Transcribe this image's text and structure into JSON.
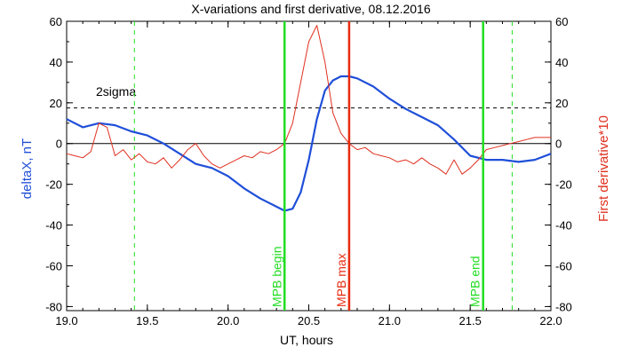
{
  "chart_data": {
    "type": "line",
    "title": "X-variations and first derivative, 08.12.2016",
    "xlabel": "UT, hours",
    "ylabel_left": "deltaX, nT",
    "ylabel_right": "First derivative*10",
    "xlim": [
      19.0,
      22.0
    ],
    "ylim": [
      -82,
      60
    ],
    "x_ticks": [
      "19.0",
      "19.5",
      "20.0",
      "20.5",
      "21.0",
      "21.5",
      "22.0"
    ],
    "y_ticks": [
      "60",
      "40",
      "20",
      "0",
      "-20",
      "-40",
      "-60",
      "-80"
    ],
    "colors": {
      "deltaX": "#1f4fd8",
      "derivative": "#e03020",
      "green": "#22dd22",
      "red": "#e82a10",
      "axis": "#000000"
    },
    "threshold": {
      "label": "2sigma",
      "value": 17.5
    },
    "annotations": [
      {
        "label": "MPB begin",
        "x": 20.35,
        "color": "green",
        "style": "solid"
      },
      {
        "label": "MPB max",
        "x": 20.75,
        "color": "red",
        "style": "solid"
      },
      {
        "label": "MPB end",
        "x": 21.58,
        "color": "green",
        "style": "solid"
      }
    ],
    "dashed_lines": [
      19.42,
      21.76
    ],
    "series": [
      {
        "key": "deltaX",
        "x": [
          19.0,
          19.1,
          19.2,
          19.3,
          19.4,
          19.5,
          19.6,
          19.7,
          19.8,
          19.9,
          20.0,
          20.1,
          20.2,
          20.3,
          20.35,
          20.4,
          20.45,
          20.5,
          20.55,
          20.6,
          20.65,
          20.7,
          20.75,
          20.8,
          20.9,
          21.0,
          21.1,
          21.2,
          21.3,
          21.4,
          21.5,
          21.6,
          21.7,
          21.8,
          21.9,
          22.0
        ],
        "y": [
          12,
          8,
          10,
          9,
          6,
          4,
          0,
          -5,
          -10,
          -12,
          -16,
          -22,
          -27,
          -31,
          -33,
          -32,
          -24,
          -8,
          12,
          26,
          31,
          33,
          33,
          32,
          28,
          22,
          17,
          13,
          9,
          2,
          -6,
          -8,
          -8,
          -9,
          -8,
          -5
        ]
      },
      {
        "key": "derivative",
        "x": [
          19.0,
          19.05,
          19.1,
          19.15,
          19.2,
          19.25,
          19.3,
          19.35,
          19.4,
          19.45,
          19.5,
          19.55,
          19.6,
          19.65,
          19.7,
          19.75,
          19.8,
          19.85,
          19.9,
          19.95,
          20.0,
          20.05,
          20.1,
          20.15,
          20.2,
          20.25,
          20.3,
          20.35,
          20.4,
          20.45,
          20.5,
          20.55,
          20.6,
          20.65,
          20.7,
          20.75,
          20.8,
          20.85,
          20.9,
          20.95,
          21.0,
          21.05,
          21.1,
          21.15,
          21.2,
          21.25,
          21.3,
          21.35,
          21.4,
          21.45,
          21.5,
          21.55,
          21.6,
          21.65,
          21.7,
          21.75,
          21.8,
          21.85,
          21.9,
          21.95,
          22.0
        ],
        "y": [
          -5,
          -6,
          -7,
          -4,
          10,
          8,
          -6,
          -3,
          -8,
          -5,
          -9,
          -10,
          -7,
          -12,
          -8,
          -3,
          0,
          -6,
          -10,
          -12,
          -10,
          -8,
          -6,
          -7,
          -4,
          -5,
          -3,
          0,
          10,
          30,
          50,
          58,
          40,
          15,
          5,
          0,
          -3,
          -2,
          -5,
          -6,
          -7,
          -9,
          -8,
          -10,
          -7,
          -10,
          -12,
          -15,
          -8,
          -15,
          -12,
          -8,
          -3,
          -2,
          -1,
          0,
          1,
          2,
          3,
          3,
          3
        ]
      }
    ]
  }
}
